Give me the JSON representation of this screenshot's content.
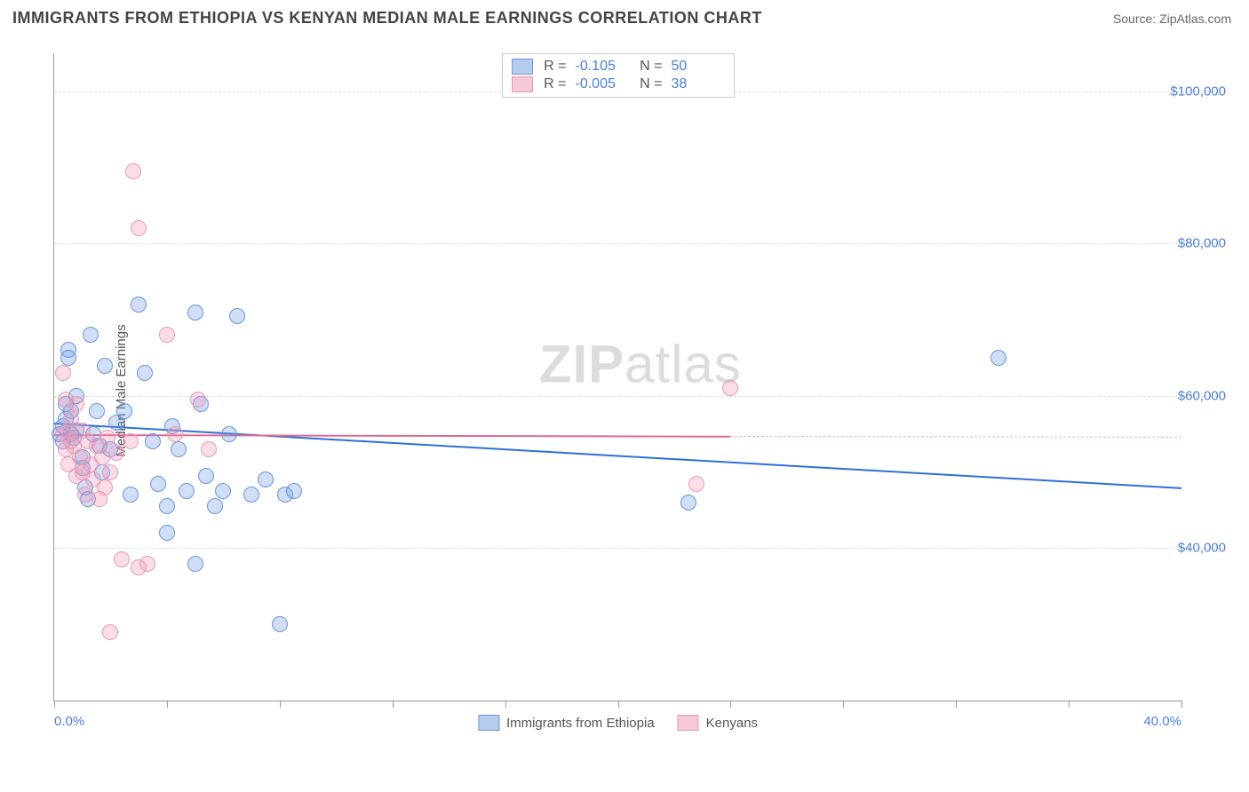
{
  "title": "IMMIGRANTS FROM ETHIOPIA VS KENYAN MEDIAN MALE EARNINGS CORRELATION CHART",
  "source_label": "Source: ",
  "source_name": "ZipAtlas.com",
  "watermark_a": "ZIP",
  "watermark_b": "atlas",
  "chart": {
    "type": "scatter",
    "y_axis_label": "Median Male Earnings",
    "xlim": [
      0,
      40
    ],
    "ylim": [
      20000,
      105000
    ],
    "xtick_positions": [
      0,
      4,
      8,
      12,
      16,
      20,
      24,
      28,
      32,
      36,
      40
    ],
    "xtick_labels": {
      "0": "0.0%",
      "40": "40.0%"
    },
    "ytick_positions": [
      40000,
      60000,
      80000,
      100000
    ],
    "ytick_labels": {
      "40000": "$40,000",
      "60000": "$60,000",
      "80000": "$80,000",
      "100000": "$100,000"
    },
    "grid_color": "#dddddd",
    "axis_color": "#999999",
    "background_color": "#ffffff",
    "label_color": "#4a7fe0",
    "marker_radius": 9,
    "marker_border_width": 1.2,
    "series": [
      {
        "name": "Immigrants from Ethiopia",
        "color_fill": "rgba(120,160,230,0.35)",
        "color_stroke": "#6b95dd",
        "swatch_fill": "#b7cdf0",
        "swatch_stroke": "#6b95dd",
        "R": "-0.105",
        "N": "50",
        "trend": {
          "x1": 0,
          "y1": 56500,
          "x2": 40,
          "y2": 48000,
          "color": "#2f6fd6",
          "width": 2,
          "dash": false
        },
        "points": [
          [
            0.2,
            55000
          ],
          [
            0.3,
            54000
          ],
          [
            0.3,
            56000
          ],
          [
            0.4,
            59000
          ],
          [
            0.4,
            57000
          ],
          [
            0.5,
            66000
          ],
          [
            0.5,
            65000
          ],
          [
            0.6,
            58000
          ],
          [
            0.6,
            55000
          ],
          [
            0.7,
            54500
          ],
          [
            0.8,
            60000
          ],
          [
            0.8,
            55500
          ],
          [
            1.0,
            52000
          ],
          [
            1.0,
            50500
          ],
          [
            1.1,
            48000
          ],
          [
            1.2,
            46500
          ],
          [
            1.3,
            68000
          ],
          [
            1.4,
            55000
          ],
          [
            1.5,
            58000
          ],
          [
            1.6,
            53500
          ],
          [
            1.7,
            50000
          ],
          [
            1.8,
            64000
          ],
          [
            2.0,
            53000
          ],
          [
            2.2,
            56500
          ],
          [
            2.5,
            58000
          ],
          [
            2.7,
            47000
          ],
          [
            3.0,
            72000
          ],
          [
            3.2,
            63000
          ],
          [
            3.5,
            54000
          ],
          [
            3.7,
            48500
          ],
          [
            4.0,
            45500
          ],
          [
            4.0,
            42000
          ],
          [
            4.2,
            56000
          ],
          [
            4.4,
            53000
          ],
          [
            4.7,
            47500
          ],
          [
            5.0,
            71000
          ],
          [
            5.0,
            38000
          ],
          [
            5.2,
            59000
          ],
          [
            5.4,
            49500
          ],
          [
            5.7,
            45500
          ],
          [
            6.0,
            47500
          ],
          [
            6.2,
            55000
          ],
          [
            6.5,
            70500
          ],
          [
            7.0,
            47000
          ],
          [
            7.5,
            49000
          ],
          [
            8.2,
            47000
          ],
          [
            8.5,
            47500
          ],
          [
            8.0,
            30000
          ],
          [
            22.5,
            46000
          ],
          [
            33.5,
            65000
          ]
        ]
      },
      {
        "name": "Kenyans",
        "color_fill": "rgba(240,150,180,0.32)",
        "color_stroke": "#e79ab4",
        "swatch_fill": "#f6c9d8",
        "swatch_stroke": "#e79ab4",
        "R": "-0.005",
        "N": "38",
        "trend": {
          "x1": 0,
          "y1": 55000,
          "x2": 24,
          "y2": 54800,
          "color": "#e06a93",
          "width": 2,
          "dash": false
        },
        "trend_ext": {
          "x1": 24,
          "y1": 54800,
          "x2": 40,
          "y2": 54700,
          "color": "#efaec3",
          "width": 1.5,
          "dash": true
        },
        "points": [
          [
            0.3,
            63000
          ],
          [
            0.3,
            55000
          ],
          [
            0.4,
            59500
          ],
          [
            0.4,
            53000
          ],
          [
            0.5,
            55500
          ],
          [
            0.5,
            51000
          ],
          [
            0.6,
            57000
          ],
          [
            0.6,
            54000
          ],
          [
            0.7,
            53500
          ],
          [
            0.8,
            49500
          ],
          [
            0.8,
            59000
          ],
          [
            0.9,
            52000
          ],
          [
            1.0,
            50000
          ],
          [
            1.0,
            55500
          ],
          [
            1.1,
            47000
          ],
          [
            1.2,
            54000
          ],
          [
            1.3,
            51000
          ],
          [
            1.4,
            49000
          ],
          [
            1.5,
            53500
          ],
          [
            1.6,
            46500
          ],
          [
            1.7,
            52000
          ],
          [
            1.8,
            48000
          ],
          [
            1.9,
            54500
          ],
          [
            2.0,
            50000
          ],
          [
            2.0,
            29000
          ],
          [
            2.2,
            52500
          ],
          [
            2.4,
            38500
          ],
          [
            2.7,
            54000
          ],
          [
            2.8,
            89500
          ],
          [
            3.0,
            37500
          ],
          [
            3.0,
            82000
          ],
          [
            3.3,
            38000
          ],
          [
            4.0,
            68000
          ],
          [
            4.3,
            55000
          ],
          [
            5.1,
            59500
          ],
          [
            5.5,
            53000
          ],
          [
            22.8,
            48500
          ],
          [
            24.0,
            61000
          ]
        ]
      }
    ]
  }
}
